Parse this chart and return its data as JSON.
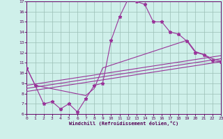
{
  "xlabel": "Windchill (Refroidissement éolien,°C)",
  "xlim": [
    0,
    23
  ],
  "ylim": [
    6,
    17
  ],
  "yticks": [
    6,
    7,
    8,
    9,
    10,
    11,
    12,
    13,
    14,
    15,
    16,
    17
  ],
  "xticks": [
    0,
    1,
    2,
    3,
    4,
    5,
    6,
    7,
    8,
    9,
    10,
    11,
    12,
    13,
    14,
    15,
    16,
    17,
    18,
    19,
    20,
    21,
    22,
    23
  ],
  "bg_color": "#cff0ea",
  "line_color": "#993399",
  "grid_color": "#9bbfb5",
  "main_x": [
    0,
    1,
    2,
    3,
    4,
    5,
    6,
    7,
    8,
    9,
    10,
    11,
    12,
    13,
    14,
    15,
    16,
    17,
    18,
    19,
    20,
    21,
    22,
    23
  ],
  "main_y": [
    10.5,
    8.8,
    7.0,
    7.2,
    6.5,
    7.0,
    6.2,
    7.5,
    8.8,
    9.0,
    13.2,
    15.5,
    17.2,
    17.0,
    16.7,
    15.0,
    15.0,
    14.0,
    13.8,
    13.1,
    12.0,
    11.8,
    11.2,
    11.1
  ],
  "line2_x": [
    0,
    23
  ],
  "line2_y": [
    8.2,
    11.1
  ],
  "line3_x": [
    0,
    23
  ],
  "line3_y": [
    8.5,
    11.4
  ],
  "line4_x": [
    0,
    23
  ],
  "line4_y": [
    8.8,
    11.7
  ],
  "line5_x": [
    0,
    1,
    7,
    8,
    9,
    19,
    20,
    21,
    22,
    23
  ],
  "line5_y": [
    10.5,
    8.8,
    7.8,
    8.5,
    10.5,
    13.2,
    12.1,
    11.8,
    11.4,
    11.2
  ]
}
